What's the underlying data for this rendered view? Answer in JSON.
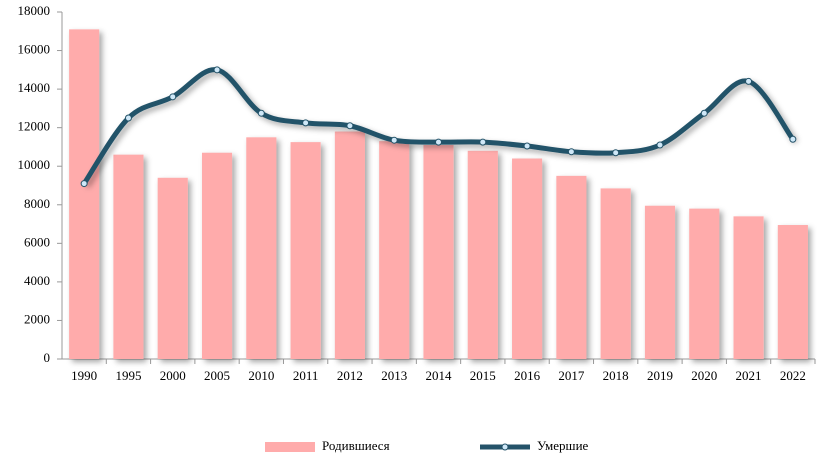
{
  "chart_data": {
    "type": "bar_line",
    "categories": [
      "1990",
      "1995",
      "2000",
      "2005",
      "2010",
      "2011",
      "2012",
      "2013",
      "2014",
      "2015",
      "2016",
      "2017",
      "2018",
      "2019",
      "2020",
      "2021",
      "2022"
    ],
    "series": [
      {
        "name": "Родившиеся",
        "type": "bar",
        "color": "#ffabab",
        "values": [
          17100,
          10600,
          9400,
          10700,
          11500,
          11250,
          11800,
          11300,
          11100,
          10800,
          10400,
          9500,
          8850,
          7950,
          7800,
          7400,
          6950
        ]
      },
      {
        "name": "Умершие",
        "type": "line",
        "color": "#245369",
        "marker_color": "#cfe8f8",
        "smooth": true,
        "values": [
          9100,
          12500,
          13600,
          15000,
          12750,
          12250,
          12100,
          11350,
          11250,
          11250,
          11050,
          10750,
          10700,
          11100,
          12750,
          14400,
          11400
        ]
      }
    ],
    "ylim": [
      0,
      18000
    ],
    "yticks": [
      0,
      2000,
      4000,
      6000,
      8000,
      10000,
      12000,
      14000,
      16000,
      18000
    ],
    "legend": "bottom"
  }
}
